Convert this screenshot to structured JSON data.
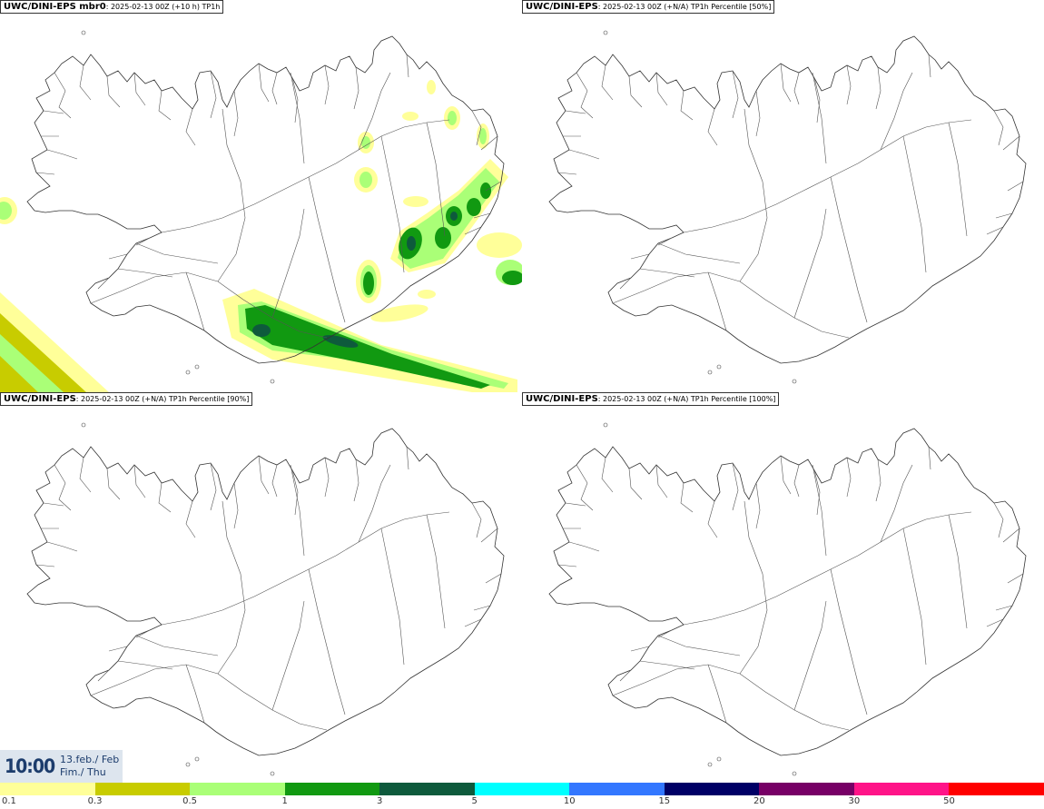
{
  "panels": [
    {
      "model": "UWC/DINI-EPS mbr0",
      "detail": ": 2025-02-13 00Z (+10 h) TP1h"
    },
    {
      "model": "UWC/DINI-EPS",
      "detail": ": 2025-02-13 00Z (+N/A) TP1h Percentile [50%]"
    },
    {
      "model": "UWC/DINI-EPS",
      "detail": ": 2025-02-13 00Z (+N/A) TP1h Percentile [90%]"
    },
    {
      "model": "UWC/DINI-EPS",
      "detail": ": 2025-02-13 00Z (+N/A) TP1h Percentile [100%]"
    }
  ],
  "timestamp": {
    "time": "10:00",
    "date_line1": "13.feb./ Feb",
    "date_line2": "Fim./ Thu"
  },
  "legend": {
    "colors": [
      "#ffff99",
      "#c8cc00",
      "#aaff77",
      "#119911",
      "#0e5a3c",
      "#00ffff",
      "#3377ff",
      "#000066",
      "#770066",
      "#ff1488",
      "#ff0000"
    ],
    "labels": [
      "0.1",
      "0.3",
      "0.5",
      "1",
      "3",
      "5",
      "10",
      "15",
      "20",
      "30",
      "50"
    ]
  }
}
